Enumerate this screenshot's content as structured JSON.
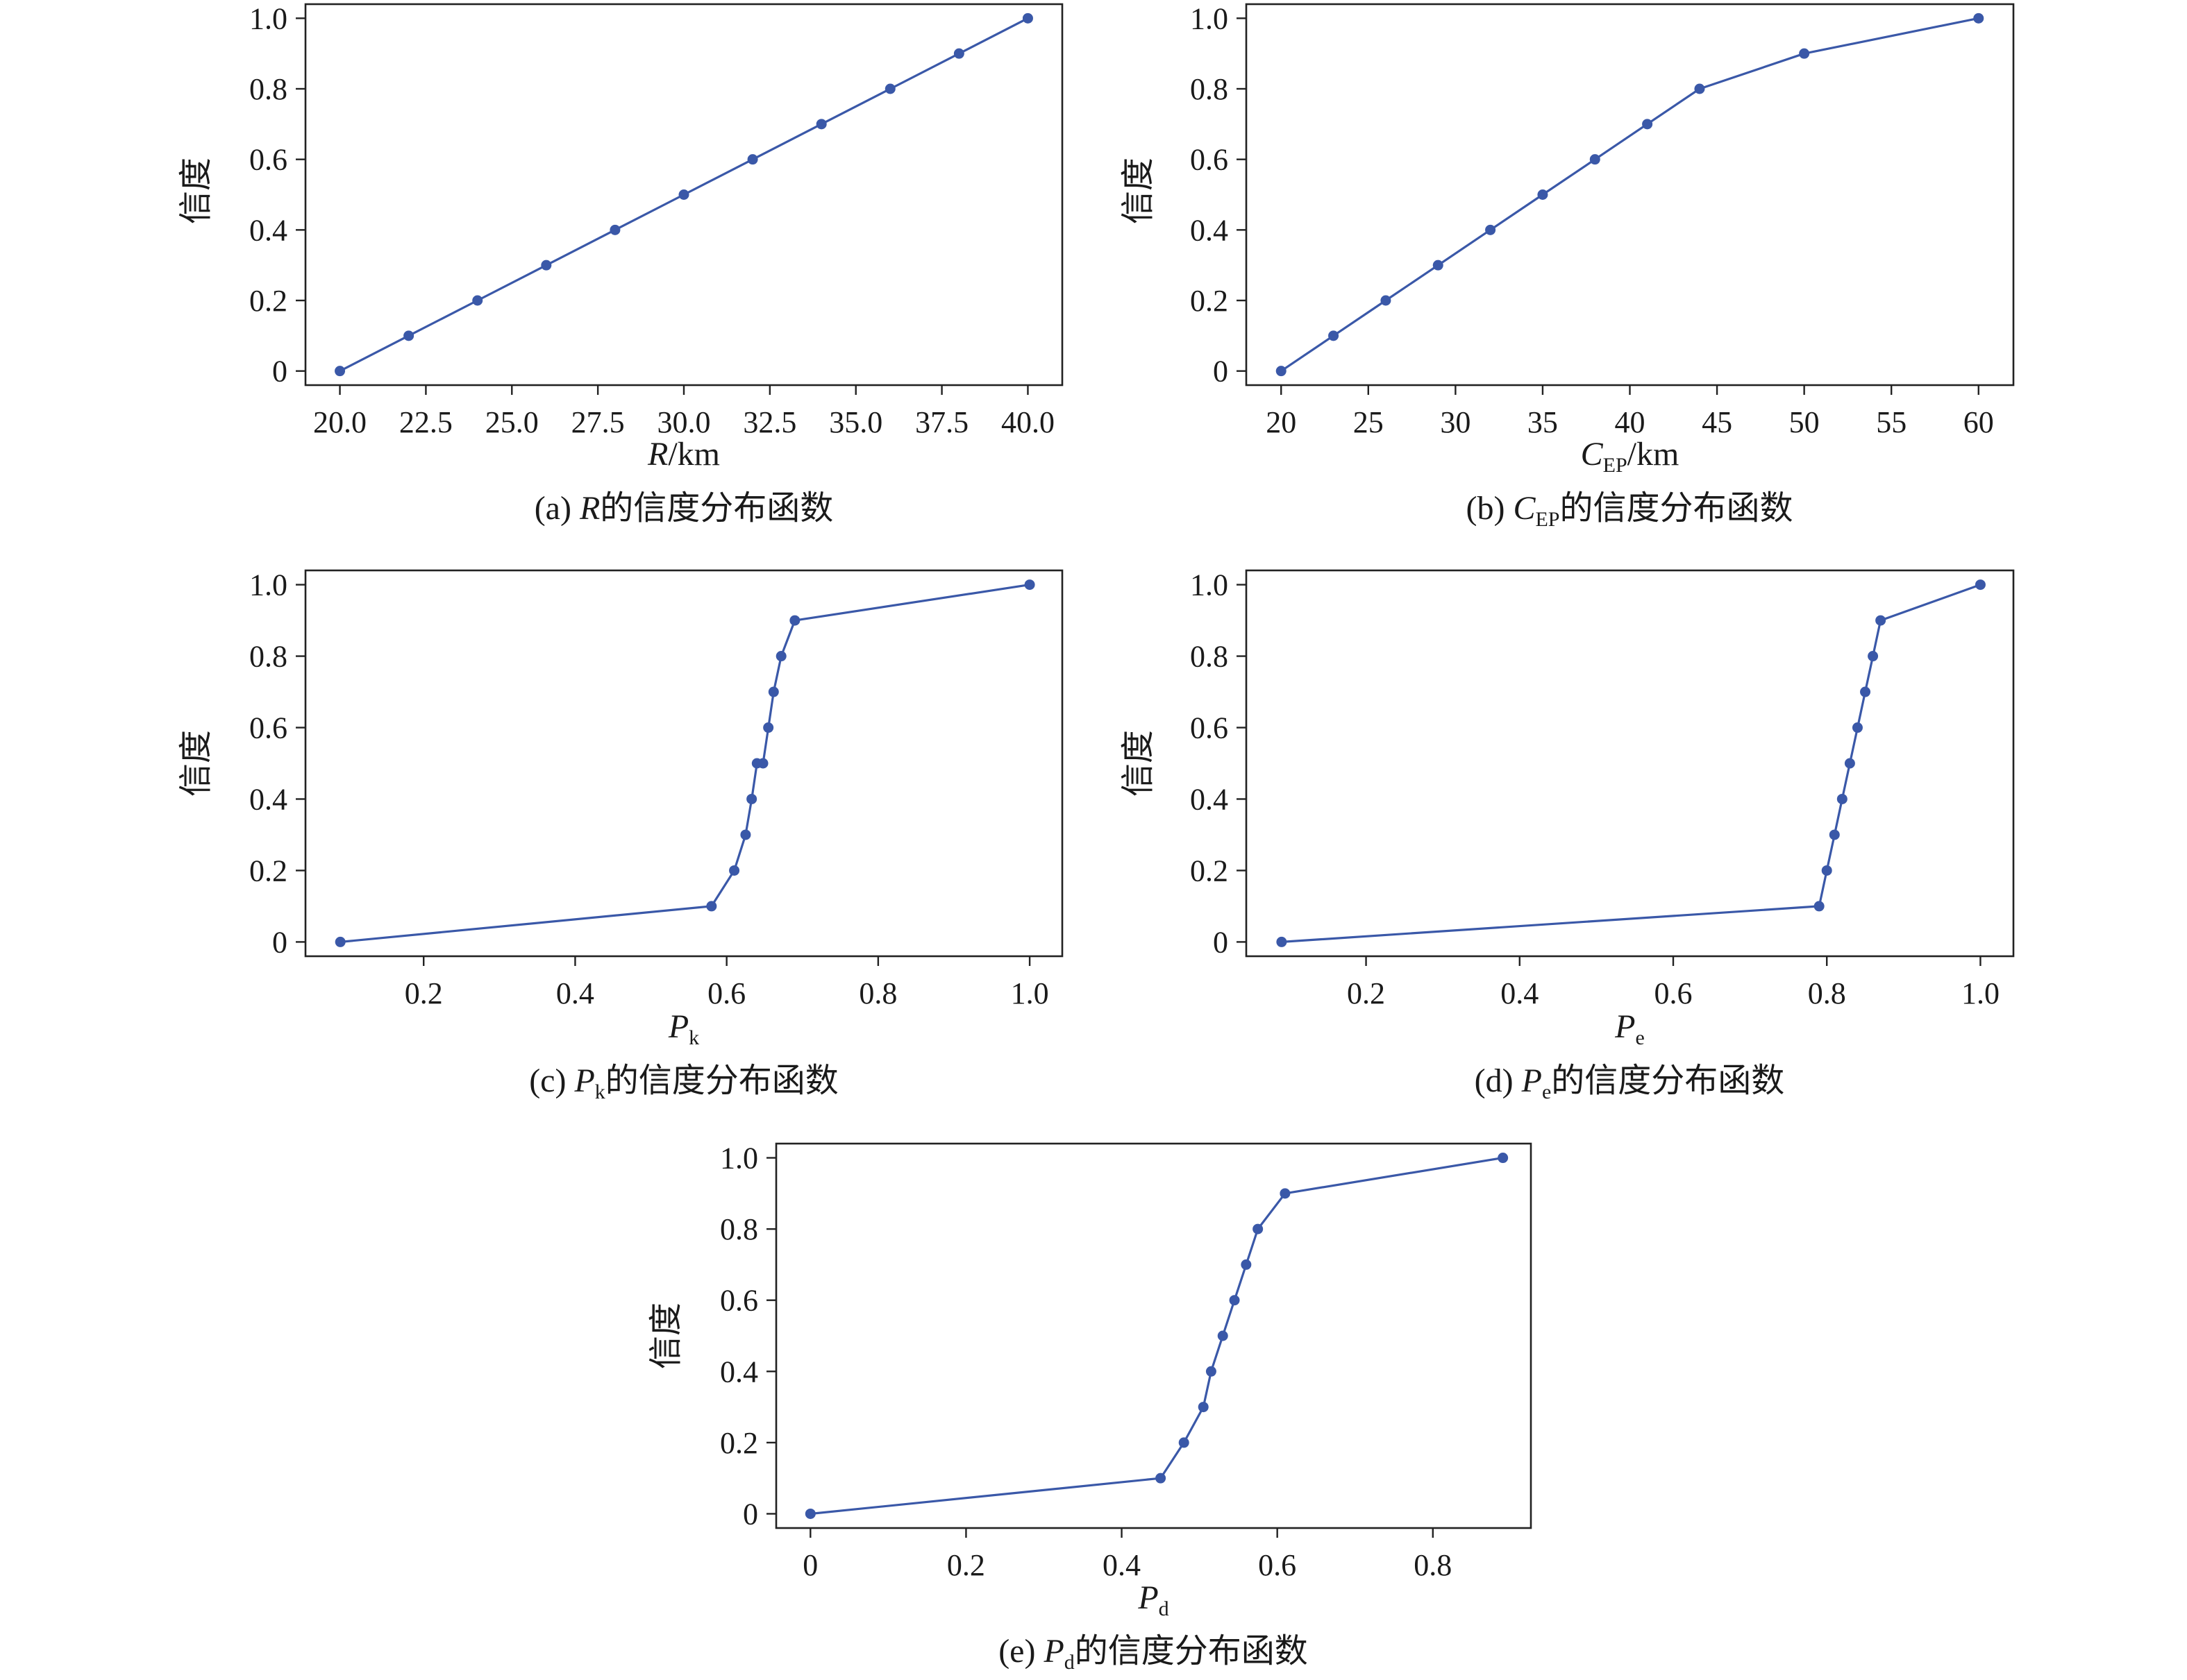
{
  "figure": {
    "colors": {
      "series": "#3a58a8",
      "axis": "#222222"
    }
  },
  "chart_data": [
    {
      "id": "a",
      "type": "line",
      "ylabel": "信度",
      "xlabel": {
        "var": "R",
        "sub": "",
        "unit": "/km"
      },
      "caption": {
        "prefix": "(a) ",
        "var": "R",
        "sub": "",
        "suffix": "的信度分布函数"
      },
      "xlim": [
        19.0,
        41.0
      ],
      "ylim": [
        -0.04,
        1.04
      ],
      "xticks": [
        20,
        22.5,
        25,
        27.5,
        30,
        32.5,
        35,
        37.5,
        40
      ],
      "xtick_labels": [
        "20.0",
        "22.5",
        "25.0",
        "27.5",
        "30.0",
        "32.5",
        "35.0",
        "37.5",
        "40.0"
      ],
      "yticks": [
        0,
        0.2,
        0.4,
        0.6,
        0.8,
        1.0
      ],
      "ytick_labels": [
        "0",
        "0.2",
        "0.4",
        "0.6",
        "0.8",
        "1.0"
      ],
      "series": [
        {
          "x": [
            20,
            22,
            24,
            26,
            28,
            30,
            32,
            34,
            36,
            38,
            40
          ],
          "y": [
            0,
            0.1,
            0.2,
            0.3,
            0.4,
            0.5,
            0.6,
            0.7,
            0.8,
            0.9,
            1.0
          ]
        }
      ]
    },
    {
      "id": "b",
      "type": "line",
      "ylabel": "信度",
      "xlabel": {
        "var": "C",
        "sub": "EP",
        "unit": "/km"
      },
      "caption": {
        "prefix": "(b) ",
        "var": "C",
        "sub": "EP",
        "suffix": "的信度分布函数"
      },
      "xlim": [
        18.0,
        62.0
      ],
      "ylim": [
        -0.04,
        1.04
      ],
      "xticks": [
        20,
        25,
        30,
        35,
        40,
        45,
        50,
        55,
        60
      ],
      "xtick_labels": [
        "20",
        "25",
        "30",
        "35",
        "40",
        "45",
        "50",
        "55",
        "60"
      ],
      "yticks": [
        0,
        0.2,
        0.4,
        0.6,
        0.8,
        1.0
      ],
      "ytick_labels": [
        "0",
        "0.2",
        "0.4",
        "0.6",
        "0.8",
        "1.0"
      ],
      "series": [
        {
          "x": [
            20,
            23,
            26,
            29,
            32,
            35,
            38,
            41,
            44,
            50,
            60
          ],
          "y": [
            0,
            0.1,
            0.2,
            0.3,
            0.4,
            0.5,
            0.6,
            0.7,
            0.8,
            0.9,
            1.0
          ]
        }
      ]
    },
    {
      "id": "c",
      "type": "line",
      "ylabel": "信度",
      "xlabel": {
        "var": "P",
        "sub": "k",
        "unit": ""
      },
      "caption": {
        "prefix": "(c) ",
        "var": "P",
        "sub": "k",
        "suffix": "的信度分布函数"
      },
      "xlim": [
        0.044,
        1.043
      ],
      "ylim": [
        -0.04,
        1.04
      ],
      "xticks": [
        0.2,
        0.4,
        0.6,
        0.8,
        1.0
      ],
      "xtick_labels": [
        "0.2",
        "0.4",
        "0.6",
        "0.8",
        "1.0"
      ],
      "yticks": [
        0,
        0.2,
        0.4,
        0.6,
        0.8,
        1.0
      ],
      "ytick_labels": [
        "0",
        "0.2",
        "0.4",
        "0.6",
        "0.8",
        "1.0"
      ],
      "series": [
        {
          "x": [
            0.09,
            0.58,
            0.61,
            0.625,
            0.633,
            0.64,
            0.648,
            0.655,
            0.662,
            0.672,
            0.69,
            1.0
          ],
          "y": [
            0,
            0.1,
            0.2,
            0.3,
            0.4,
            0.5,
            0.5,
            0.6,
            0.7,
            0.8,
            0.9,
            1.0
          ]
        }
      ]
    },
    {
      "id": "d",
      "type": "line",
      "ylabel": "信度",
      "xlabel": {
        "var": "P",
        "sub": "e",
        "unit": ""
      },
      "caption": {
        "prefix": "(d) ",
        "var": "P",
        "sub": "e",
        "suffix": "的信度分布函数"
      },
      "xlim": [
        0.044,
        1.043
      ],
      "ylim": [
        -0.04,
        1.04
      ],
      "xticks": [
        0.2,
        0.4,
        0.6,
        0.8,
        1.0
      ],
      "xtick_labels": [
        "0.2",
        "0.4",
        "0.6",
        "0.8",
        "1.0"
      ],
      "yticks": [
        0,
        0.2,
        0.4,
        0.6,
        0.8,
        1.0
      ],
      "ytick_labels": [
        "0",
        "0.2",
        "0.4",
        "0.6",
        "0.8",
        "1.0"
      ],
      "series": [
        {
          "x": [
            0.09,
            0.79,
            0.8,
            0.81,
            0.82,
            0.83,
            0.84,
            0.85,
            0.86,
            0.87,
            1.0
          ],
          "y": [
            0,
            0.1,
            0.2,
            0.3,
            0.4,
            0.5,
            0.6,
            0.7,
            0.8,
            0.9,
            1.0
          ]
        }
      ]
    },
    {
      "id": "e",
      "type": "line",
      "ylabel": "信度",
      "xlabel": {
        "var": "P",
        "sub": "d",
        "unit": ""
      },
      "caption": {
        "prefix": "(e) ",
        "var": "P",
        "sub": "d",
        "suffix": "的信度分布函数"
      },
      "xlim": [
        -0.044,
        0.926
      ],
      "ylim": [
        -0.04,
        1.04
      ],
      "xticks": [
        0,
        0.2,
        0.4,
        0.6,
        0.8
      ],
      "xtick_labels": [
        "0",
        "0.2",
        "0.4",
        "0.6",
        "0.8"
      ],
      "yticks": [
        0,
        0.2,
        0.4,
        0.6,
        0.8,
        1.0
      ],
      "ytick_labels": [
        "0",
        "0.2",
        "0.4",
        "0.6",
        "0.8",
        "1.0"
      ],
      "series": [
        {
          "x": [
            0,
            0.45,
            0.48,
            0.505,
            0.515,
            0.53,
            0.545,
            0.56,
            0.575,
            0.61,
            0.89
          ],
          "y": [
            0,
            0.1,
            0.2,
            0.3,
            0.4,
            0.5,
            0.6,
            0.7,
            0.8,
            0.9,
            1.0
          ]
        }
      ]
    }
  ]
}
